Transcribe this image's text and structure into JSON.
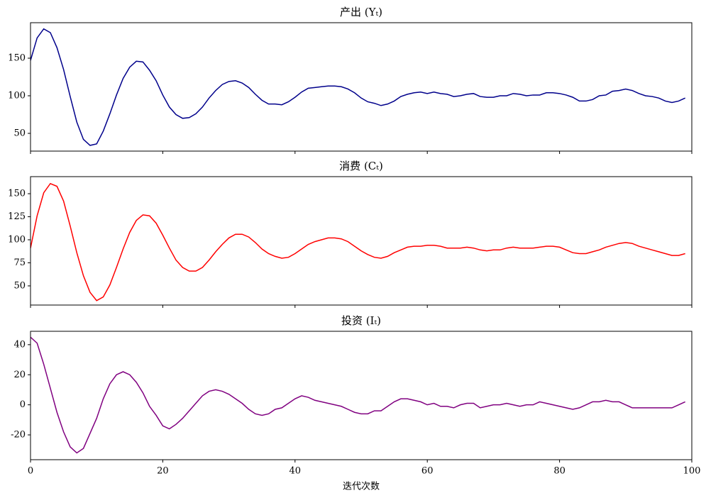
{
  "chart_data": [
    {
      "type": "line",
      "title": "产出 (Yₜ)",
      "color": "#00008b",
      "x": [
        0,
        1,
        2,
        3,
        4,
        5,
        6,
        7,
        8,
        9,
        10,
        11,
        12,
        13,
        14,
        15,
        16,
        17,
        18,
        19,
        20,
        21,
        22,
        23,
        24,
        25,
        26,
        27,
        28,
        29,
        30,
        31,
        32,
        33,
        34,
        35,
        36,
        37,
        38,
        39,
        40,
        41,
        42,
        43,
        44,
        45,
        46,
        47,
        48,
        49,
        50,
        51,
        52,
        53,
        54,
        55,
        56,
        57,
        58,
        59,
        60,
        61,
        62,
        63,
        64,
        65,
        66,
        67,
        68,
        69,
        70,
        71,
        72,
        73,
        74,
        75,
        76,
        77,
        78,
        79,
        80,
        81,
        82,
        83,
        84,
        85,
        86,
        87,
        88,
        89,
        90,
        91,
        92,
        93,
        94,
        95,
        96,
        97,
        98,
        99
      ],
      "values": [
        147,
        177,
        189,
        184,
        164,
        135,
        99,
        65,
        42,
        34,
        36,
        53,
        76,
        101,
        123,
        138,
        146,
        145,
        134,
        120,
        101,
        85,
        75,
        70,
        71,
        76,
        85,
        97,
        107,
        115,
        119,
        120,
        117,
        111,
        102,
        94,
        89,
        89,
        88,
        92,
        98,
        105,
        110,
        111,
        112,
        113,
        113,
        112,
        109,
        104,
        97,
        92,
        90,
        87,
        89,
        93,
        99,
        102,
        104,
        105,
        103,
        105,
        103,
        102,
        99,
        100,
        102,
        103,
        99,
        98,
        98,
        100,
        100,
        103,
        102,
        100,
        101,
        101,
        104,
        104,
        103,
        101,
        98,
        93,
        93,
        95,
        100,
        101,
        106,
        107,
        109,
        107,
        103,
        100,
        99,
        97,
        93,
        91,
        93,
        97
      ],
      "xlim": [
        0,
        100
      ],
      "xticks": [
        0,
        20,
        40,
        60,
        80,
        100
      ],
      "xticklabels": false,
      "ylim": [
        26.4,
        197.2
      ],
      "yticks": [
        50,
        100,
        150
      ]
    },
    {
      "type": "line",
      "title": "消费 (Cₜ)",
      "color": "#ff0000",
      "x": [
        0,
        1,
        2,
        3,
        4,
        5,
        6,
        7,
        8,
        9,
        10,
        11,
        12,
        13,
        14,
        15,
        16,
        17,
        18,
        19,
        20,
        21,
        22,
        23,
        24,
        25,
        26,
        27,
        28,
        29,
        30,
        31,
        32,
        33,
        34,
        35,
        36,
        37,
        38,
        39,
        40,
        41,
        42,
        43,
        44,
        45,
        46,
        47,
        48,
        49,
        50,
        51,
        52,
        53,
        54,
        55,
        56,
        57,
        58,
        59,
        60,
        61,
        62,
        63,
        64,
        65,
        66,
        67,
        68,
        69,
        70,
        71,
        72,
        73,
        74,
        75,
        76,
        77,
        78,
        79,
        80,
        81,
        82,
        83,
        84,
        85,
        86,
        87,
        88,
        89,
        90,
        91,
        92,
        93,
        94,
        95,
        96,
        97,
        98,
        99
      ],
      "values": [
        91,
        126,
        151,
        161,
        158,
        142,
        115,
        86,
        61,
        43,
        34,
        38,
        51,
        70,
        90,
        108,
        121,
        127,
        126,
        118,
        105,
        91,
        78,
        70,
        66,
        66,
        70,
        78,
        87,
        95,
        102,
        106,
        106,
        103,
        97,
        90,
        85,
        82,
        80,
        81,
        85,
        90,
        95,
        98,
        100,
        102,
        102,
        101,
        98,
        93,
        88,
        84,
        81,
        80,
        82,
        86,
        89,
        92,
        93,
        93,
        94,
        94,
        93,
        91,
        91,
        91,
        92,
        91,
        89,
        88,
        89,
        89,
        91,
        92,
        91,
        91,
        91,
        92,
        93,
        93,
        92,
        89,
        86,
        85,
        85,
        87,
        89,
        92,
        94,
        96,
        97,
        96,
        93,
        91,
        89,
        87,
        85,
        83,
        83,
        85
      ],
      "xlim": [
        0,
        100
      ],
      "xticks": [
        0,
        20,
        40,
        60,
        80,
        100
      ],
      "xticklabels": false,
      "ylim": [
        29.2,
        168.5
      ],
      "yticks": [
        50,
        75,
        100,
        125,
        150
      ]
    },
    {
      "type": "line",
      "title": "投资 (Iₜ)",
      "color": "#800080",
      "xlabel": "迭代次数",
      "x": [
        0,
        1,
        2,
        3,
        4,
        5,
        6,
        7,
        8,
        9,
        10,
        11,
        12,
        13,
        14,
        15,
        16,
        17,
        18,
        19,
        20,
        21,
        22,
        23,
        24,
        25,
        26,
        27,
        28,
        29,
        30,
        31,
        32,
        33,
        34,
        35,
        36,
        37,
        38,
        39,
        40,
        41,
        42,
        43,
        44,
        45,
        46,
        47,
        48,
        49,
        50,
        51,
        52,
        53,
        54,
        55,
        56,
        57,
        58,
        59,
        60,
        61,
        62,
        63,
        64,
        65,
        66,
        67,
        68,
        69,
        70,
        71,
        72,
        73,
        74,
        75,
        76,
        77,
        78,
        79,
        80,
        81,
        82,
        83,
        84,
        85,
        86,
        87,
        88,
        89,
        90,
        91,
        92,
        93,
        94,
        95,
        96,
        97,
        98,
        99
      ],
      "values": [
        45,
        41,
        27,
        11,
        -5,
        -18,
        -28,
        -32,
        -29,
        -19,
        -9,
        4,
        14,
        20,
        22,
        20,
        15,
        8,
        -1,
        -7,
        -14,
        -16,
        -13,
        -9,
        -4,
        1,
        6,
        9,
        10,
        9,
        7,
        4,
        1,
        -3,
        -6,
        -7,
        -6,
        -3,
        -2,
        1,
        4,
        6,
        5,
        3,
        2,
        1,
        0,
        -1,
        -3,
        -5,
        -6,
        -6,
        -4,
        -4,
        -1,
        2,
        4,
        4,
        3,
        2,
        0,
        1,
        -1,
        -1,
        -2,
        0,
        1,
        1,
        -2,
        -1,
        0,
        0,
        1,
        0,
        -1,
        0,
        0,
        2,
        1,
        0,
        -1,
        -2,
        -3,
        -2,
        0,
        2,
        2,
        3,
        2,
        2,
        0,
        -2,
        -2,
        -2,
        -2,
        -2,
        -2,
        -2,
        0,
        2
      ],
      "xlim": [
        0,
        100
      ],
      "xticks": [
        0,
        20,
        40,
        60,
        80,
        100
      ],
      "xticklabels": true,
      "ylim": [
        -36.5,
        48.9
      ],
      "yticks": [
        -20,
        0,
        20,
        40
      ]
    }
  ]
}
